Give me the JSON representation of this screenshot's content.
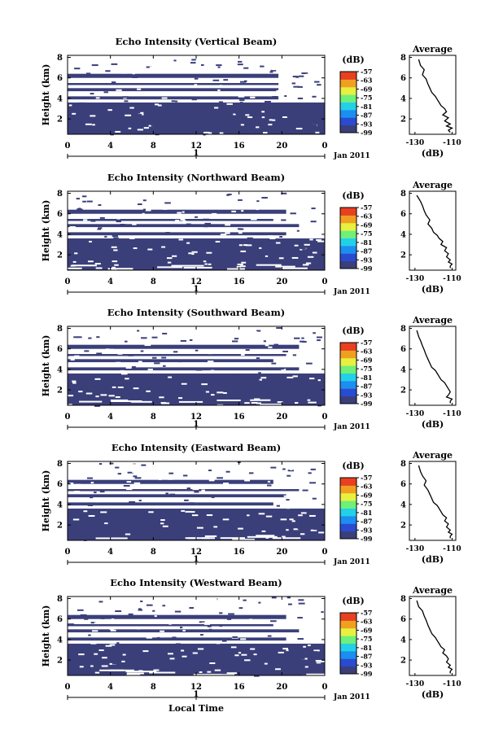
{
  "colors": {
    "heatmap_fill": "#3a3f7a",
    "colorbar": [
      "#3a3f7a",
      "#2a4bd0",
      "#1c8ef0",
      "#22d0e8",
      "#6ef07a",
      "#e8f040",
      "#f0a020",
      "#e84020"
    ]
  },
  "chart_data": [
    {
      "type": "heatmap",
      "title": "Echo Intensity (Vertical Beam)",
      "ylabel": "Height (km)",
      "yticks": [
        "2",
        "4",
        "6",
        "8"
      ],
      "ylim": [
        0.5,
        8.2
      ],
      "xticks": [
        "0",
        "4",
        "8",
        "12",
        "16",
        "20",
        "0"
      ],
      "xlim": [
        0,
        24
      ],
      "date_tick": "1",
      "date_label": "Jan 2011",
      "colorbar_unit": "(dB)",
      "colorbar_ticks": [
        "-57",
        "-63",
        "-69",
        "-75",
        "-81",
        "-87",
        "-93",
        "-99"
      ],
      "profile": {
        "title": "Average",
        "xlabel": "(dB)",
        "xticks": [
          "-130",
          "-110"
        ],
        "xlim": [
          -133,
          -108
        ],
        "ylim": [
          0.5,
          8.2
        ],
        "yticks": [
          "2",
          "4",
          "6",
          "8"
        ],
        "x": [
          -128,
          -127,
          -125,
          -126,
          -124,
          -123,
          -122,
          -121,
          -119,
          -118,
          -117,
          -116,
          -114,
          -113,
          -115,
          -112,
          -114,
          -111,
          -113,
          -110,
          -112,
          -111
        ],
        "y": [
          7.8,
          7.2,
          6.8,
          6.3,
          5.9,
          5.4,
          5.0,
          4.6,
          4.2,
          3.9,
          3.6,
          3.3,
          3.0,
          2.7,
          2.4,
          2.1,
          1.8,
          1.5,
          1.3,
          1.1,
          0.9,
          0.7
        ]
      }
    },
    {
      "type": "heatmap",
      "title": "Echo Intensity (Northward Beam)",
      "ylabel": "Height (km)",
      "yticks": [
        "2",
        "4",
        "6",
        "8"
      ],
      "ylim": [
        0.5,
        8.2
      ],
      "xticks": [
        "0",
        "4",
        "8",
        "12",
        "16",
        "20",
        "0"
      ],
      "xlim": [
        0,
        24
      ],
      "date_tick": "1",
      "date_label": "Jan 2011",
      "colorbar_unit": "(dB)",
      "colorbar_ticks": [
        "-57",
        "-63",
        "-69",
        "-75",
        "-81",
        "-87",
        "-93",
        "-99"
      ],
      "profile": {
        "title": "Average",
        "xlabel": "(dB)",
        "xticks": [
          "-130",
          "-110"
        ],
        "xlim": [
          -133,
          -108
        ],
        "ylim": [
          0.5,
          8.2
        ],
        "yticks": [
          "2",
          "4",
          "6",
          "8"
        ],
        "x": [
          -129,
          -127,
          -126,
          -125,
          -124,
          -122,
          -123,
          -121,
          -120,
          -118,
          -117,
          -115,
          -116,
          -113,
          -114,
          -112,
          -113,
          -111,
          -112,
          -110,
          -111,
          -111
        ],
        "y": [
          7.8,
          7.2,
          6.8,
          6.3,
          5.9,
          5.4,
          5.0,
          4.6,
          4.2,
          3.9,
          3.6,
          3.3,
          3.0,
          2.7,
          2.4,
          2.1,
          1.8,
          1.5,
          1.3,
          1.1,
          0.9,
          0.7
        ]
      }
    },
    {
      "type": "heatmap",
      "title": "Echo Intensity (Southward Beam)",
      "ylabel": "Height (km)",
      "yticks": [
        "2",
        "4",
        "6",
        "8"
      ],
      "ylim": [
        0.5,
        8.2
      ],
      "xticks": [
        "0",
        "4",
        "8",
        "12",
        "16",
        "20",
        "0"
      ],
      "xlim": [
        0,
        24
      ],
      "date_tick": "1",
      "date_label": "Jan 2011",
      "colorbar_unit": "(dB)",
      "colorbar_ticks": [
        "-57",
        "-63",
        "-69",
        "-75",
        "-81",
        "-87",
        "-93",
        "-99"
      ],
      "profile": {
        "title": "Average",
        "xlabel": "(dB)",
        "xticks": [
          "-130",
          "-110"
        ],
        "xlim": [
          -133,
          -108
        ],
        "ylim": [
          0.5,
          8.2
        ],
        "yticks": [
          "2",
          "4",
          "6",
          "8"
        ],
        "x": [
          -129,
          -128,
          -127,
          -126,
          -125,
          -124,
          -123,
          -122,
          -121,
          -119,
          -118,
          -117,
          -116,
          -114,
          -113,
          -112,
          -111,
          -112,
          -113,
          -110,
          -111,
          -111
        ],
        "y": [
          7.8,
          7.2,
          6.8,
          6.3,
          5.9,
          5.4,
          5.0,
          4.6,
          4.2,
          3.9,
          3.6,
          3.3,
          3.0,
          2.7,
          2.4,
          2.1,
          1.8,
          1.5,
          1.3,
          1.1,
          0.9,
          0.7
        ]
      }
    },
    {
      "type": "heatmap",
      "title": "Echo Intensity (Eastward Beam)",
      "ylabel": "Height (km)",
      "yticks": [
        "2",
        "4",
        "6",
        "8"
      ],
      "ylim": [
        0.5,
        8.2
      ],
      "xticks": [
        "0",
        "4",
        "8",
        "12",
        "16",
        "20",
        "0"
      ],
      "xlim": [
        0,
        24
      ],
      "date_tick": "1",
      "date_label": "Jan 2011",
      "colorbar_unit": "(dB)",
      "colorbar_ticks": [
        "-57",
        "-63",
        "-69",
        "-75",
        "-81",
        "-87",
        "-93",
        "-99"
      ],
      "profile": {
        "title": "Average",
        "xlabel": "(dB)",
        "xticks": [
          "-130",
          "-110"
        ],
        "xlim": [
          -133,
          -108
        ],
        "ylim": [
          0.5,
          8.2
        ],
        "yticks": [
          "2",
          "4",
          "6",
          "8"
        ],
        "x": [
          -128,
          -127,
          -126,
          -124,
          -125,
          -123,
          -122,
          -121,
          -120,
          -118,
          -117,
          -116,
          -115,
          -113,
          -114,
          -112,
          -113,
          -111,
          -112,
          -110,
          -111,
          -111
        ],
        "y": [
          7.8,
          7.2,
          6.8,
          6.3,
          5.9,
          5.4,
          5.0,
          4.6,
          4.2,
          3.9,
          3.6,
          3.3,
          3.0,
          2.7,
          2.4,
          2.1,
          1.8,
          1.5,
          1.3,
          1.1,
          0.9,
          0.7
        ]
      }
    },
    {
      "type": "heatmap",
      "title": "Echo Intensity (Westward Beam)",
      "ylabel": "Height (km)",
      "yticks": [
        "2",
        "4",
        "6",
        "8"
      ],
      "ylim": [
        0.5,
        8.2
      ],
      "xticks": [
        "0",
        "4",
        "8",
        "12",
        "16",
        "20",
        "0"
      ],
      "xlim": [
        0,
        24
      ],
      "date_tick": "1",
      "date_label": "Jan 2011",
      "xlabel": "Local Time",
      "colorbar_unit": "(dB)",
      "colorbar_ticks": [
        "-57",
        "-63",
        "-69",
        "-75",
        "-81",
        "-87",
        "-93",
        "-99"
      ],
      "profile": {
        "title": "Average",
        "xlabel": "(dB)",
        "xticks": [
          "-130",
          "-110"
        ],
        "xlim": [
          -133,
          -108
        ],
        "ylim": [
          0.5,
          8.2
        ],
        "yticks": [
          "2",
          "4",
          "6",
          "8"
        ],
        "x": [
          -129,
          -128,
          -126,
          -125,
          -124,
          -123,
          -122,
          -121,
          -119,
          -118,
          -117,
          -116,
          -114,
          -115,
          -113,
          -112,
          -113,
          -111,
          -112,
          -110,
          -111,
          -111
        ],
        "y": [
          7.8,
          7.2,
          6.8,
          6.3,
          5.9,
          5.4,
          5.0,
          4.6,
          4.2,
          3.9,
          3.6,
          3.3,
          3.0,
          2.7,
          2.4,
          2.1,
          1.8,
          1.5,
          1.3,
          1.1,
          0.9,
          0.7
        ]
      }
    }
  ]
}
